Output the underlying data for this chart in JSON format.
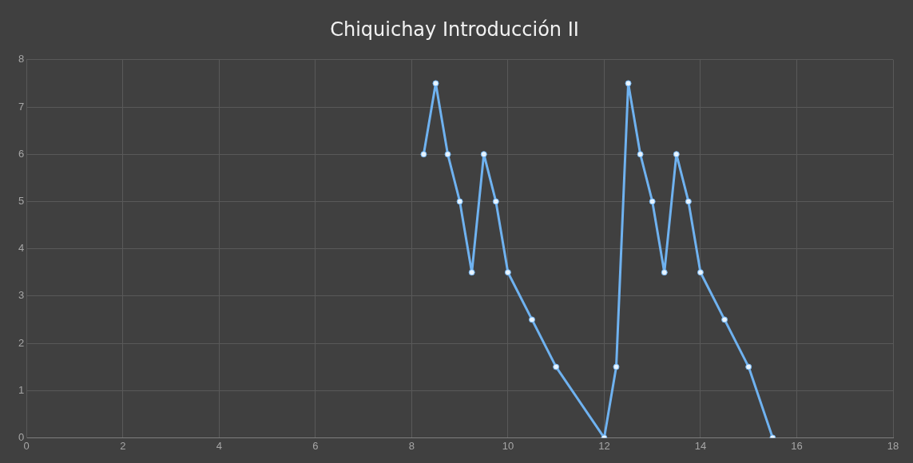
{
  "chart_data": {
    "type": "scatter",
    "title": "Chiquichay Introducción II",
    "series": [
      {
        "type": "line",
        "color": "#6fb2f0",
        "x": [
          8.25,
          8.5,
          8.75,
          9,
          9.25,
          9.5,
          9.75,
          10,
          10.5,
          11,
          12,
          12.25,
          12.5,
          12.75,
          13,
          13.25,
          13.5,
          13.75,
          14,
          14.5,
          15,
          15.5
        ],
        "values": [
          6,
          7.5,
          6,
          5,
          3.5,
          6,
          5,
          3.5,
          2.5,
          1.5,
          0,
          1.5,
          7.5,
          6,
          5,
          3.5,
          6,
          5,
          3.5,
          2.5,
          1.5,
          0
        ]
      }
    ],
    "xlim": [
      0,
      18
    ],
    "xticks": [
      0,
      2,
      4,
      6,
      8,
      10,
      12,
      14,
      16,
      18
    ],
    "ylim": [
      0,
      8
    ],
    "yticks": [
      0,
      1,
      2,
      3,
      4,
      5,
      6,
      7,
      8
    ],
    "grid": true,
    "marker": "circle",
    "line_style": "solid",
    "legend": false
  }
}
